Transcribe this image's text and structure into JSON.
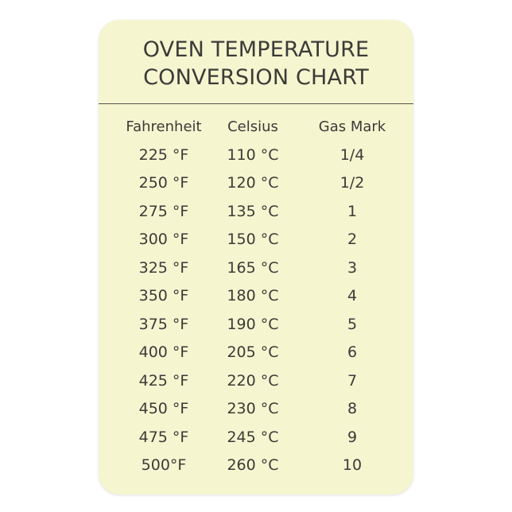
{
  "title_lines": [
    "OVEN TEMPERATURE",
    "CONVERSION CHART"
  ],
  "colors": {
    "card_background": "#f5f5d0",
    "text": "#3b3b38"
  },
  "table": {
    "headers": [
      "Fahrenheit",
      "Celsius",
      "Gas Mark"
    ],
    "rows": [
      [
        "225 °F",
        "110 °C",
        "1/4"
      ],
      [
        "250 °F",
        "120 °C",
        "1/2"
      ],
      [
        "275 °F",
        "135 °C",
        "1"
      ],
      [
        "300 °F",
        "150 °C",
        "2"
      ],
      [
        "325 °F",
        "165 °C",
        "3"
      ],
      [
        "350 °F",
        "180 °C",
        "4"
      ],
      [
        "375 °F",
        "190 °C",
        "5"
      ],
      [
        "400 °F",
        "205 °C",
        "6"
      ],
      [
        "425 °F",
        "220 °C",
        "7"
      ],
      [
        "450 °F",
        "230 °C",
        "8"
      ],
      [
        "475 °F",
        "245 °C",
        "9"
      ],
      [
        "500°F",
        "260 °C",
        "10"
      ]
    ]
  }
}
